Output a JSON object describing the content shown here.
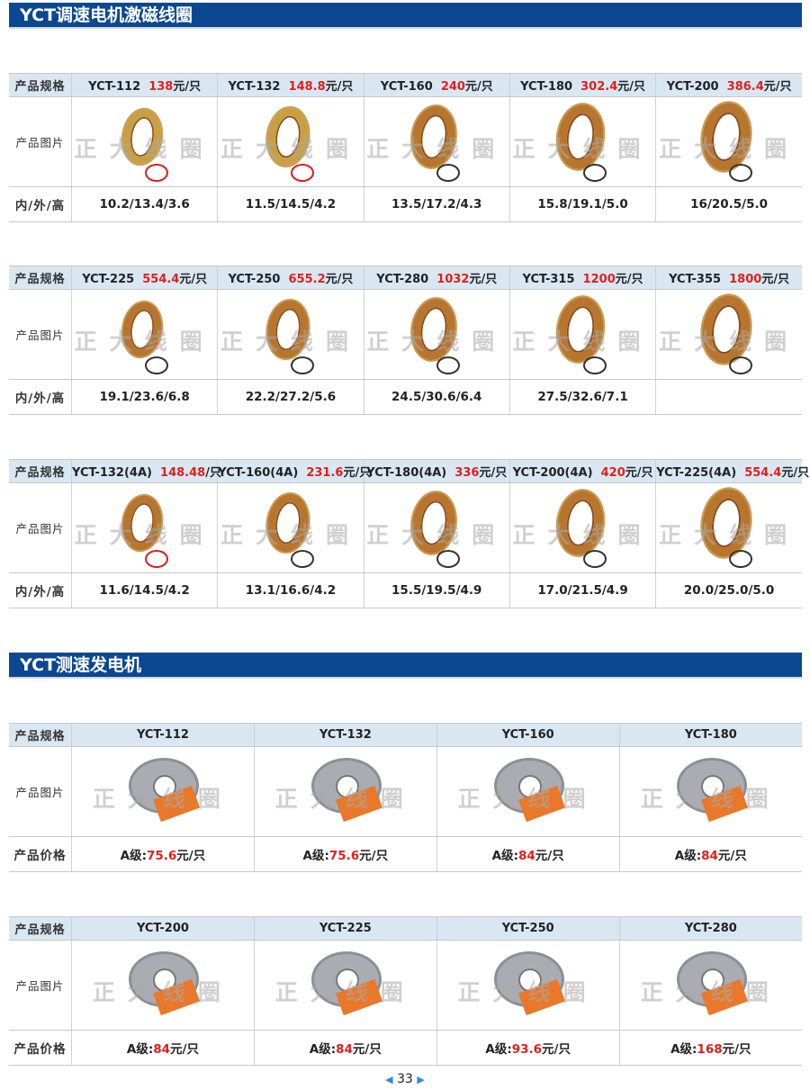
{
  "sections": [
    {
      "title": "YCT调速电机激磁线圈",
      "row_labels": {
        "spec": "产品规格",
        "image": "产品图片",
        "dims": "内/外/高"
      },
      "watermark": "正大线圈",
      "tables": [
        {
          "columns": [
            {
              "model": "YCT-112",
              "price": "138",
              "unit": "元/只",
              "dims": "10.2/13.4/3.6",
              "lead": "red"
            },
            {
              "model": "YCT-132",
              "price": "148.8",
              "unit": "元/只",
              "dims": "11.5/14.5/4.2",
              "lead": "red"
            },
            {
              "model": "YCT-160",
              "price": "240",
              "unit": "元/只",
              "dims": "13.5/17.2/4.3",
              "lead": "black"
            },
            {
              "model": "YCT-180",
              "price": "302.4",
              "unit": "元/只",
              "dims": "15.8/19.1/5.0",
              "lead": "black"
            },
            {
              "model": "YCT-200",
              "price": "386.4",
              "unit": "元/只",
              "dims": "16/20.5/5.0",
              "lead": "black"
            }
          ]
        },
        {
          "columns": [
            {
              "model": "YCT-225",
              "price": "554.4",
              "unit": "元/只",
              "dims": "19.1/23.6/6.8",
              "lead": "black"
            },
            {
              "model": "YCT-250",
              "price": "655.2",
              "unit": "元/只",
              "dims": "22.2/27.2/5.6",
              "lead": "black"
            },
            {
              "model": "YCT-280",
              "price": "1032",
              "unit": "元/只",
              "dims": "24.5/30.6/6.4",
              "lead": "black"
            },
            {
              "model": "YCT-315",
              "price": "1200",
              "unit": "元/只",
              "dims": "27.5/32.6/7.1",
              "lead": "black"
            },
            {
              "model": "YCT-355",
              "price": "1800",
              "unit": "元/只",
              "dims": "",
              "lead": "black"
            }
          ]
        },
        {
          "columns": [
            {
              "model": "YCT-132(4A)",
              "price": "148.48",
              "unit": "/只",
              "dims": "11.6/14.5/4.2",
              "lead": "red"
            },
            {
              "model": "YCT-160(4A)",
              "price": "231.6",
              "unit": "元/只",
              "dims": "13.1/16.6/4.2",
              "lead": "black"
            },
            {
              "model": "YCT-180(4A)",
              "price": "336",
              "unit": "元/只",
              "dims": "15.5/19.5/4.9",
              "lead": "black"
            },
            {
              "model": "YCT-200(4A)",
              "price": "420",
              "unit": "元/只",
              "dims": "17.0/21.5/4.9",
              "lead": "black"
            },
            {
              "model": "YCT-225(4A)",
              "price": "554.4",
              "unit": "元/只",
              "dims": "20.0/25.0/5.0",
              "lead": "black"
            }
          ]
        }
      ]
    },
    {
      "title": "YCT测速发电机",
      "row_labels": {
        "spec": "产品规格",
        "image": "产品图片",
        "dims": "产品价格"
      },
      "watermark": "正大线圈",
      "grade": "A级:",
      "tables": [
        {
          "columns": [
            {
              "model": "YCT-112",
              "price": "75.6",
              "unit": "元/只"
            },
            {
              "model": "YCT-132",
              "price": "75.6",
              "unit": "元/只"
            },
            {
              "model": "YCT-160",
              "price": "84",
              "unit": "元/只"
            },
            {
              "model": "YCT-180",
              "price": "84",
              "unit": "元/只"
            }
          ]
        },
        {
          "columns": [
            {
              "model": "YCT-200",
              "price": "84",
              "unit": "元/只"
            },
            {
              "model": "YCT-225",
              "price": "84",
              "unit": "元/只"
            },
            {
              "model": "YCT-250",
              "price": "93.6",
              "unit": "元/只"
            },
            {
              "model": "YCT-280",
              "price": "168",
              "unit": "元/只"
            }
          ]
        }
      ]
    }
  ],
  "footer": {
    "page_number": "33"
  },
  "colors": {
    "header_bar": "#0b4891",
    "header_row": "#d9e7f3",
    "price": "#e0201b"
  }
}
